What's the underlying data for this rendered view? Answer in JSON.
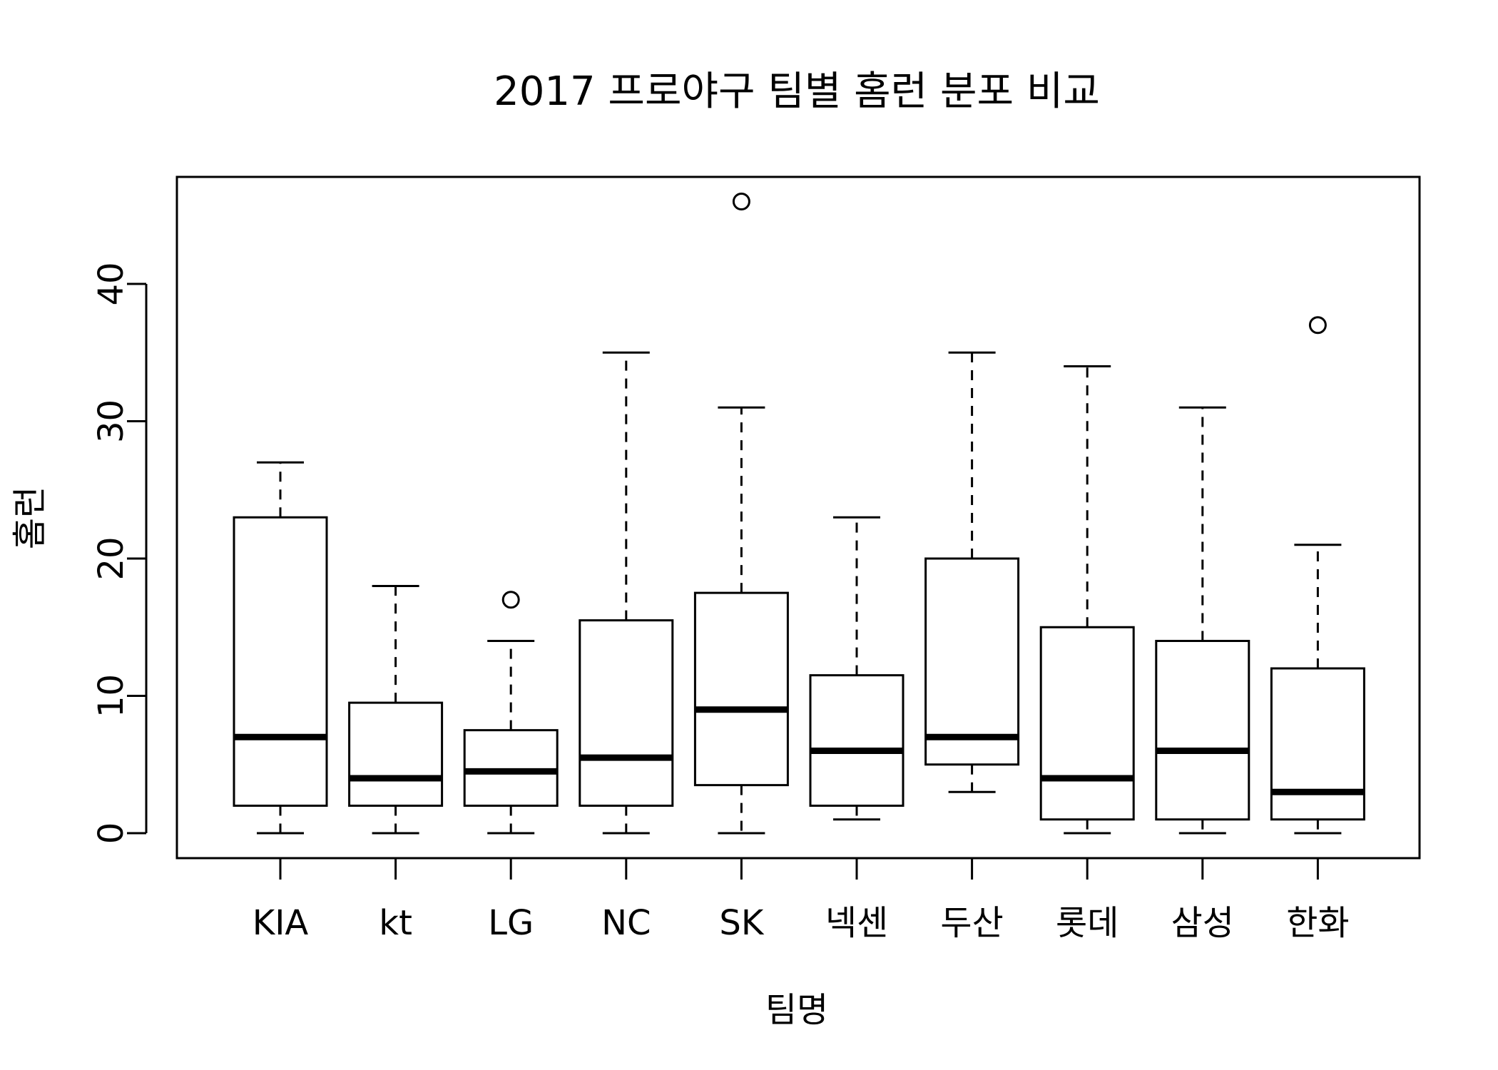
{
  "chart_data": {
    "type": "boxplot",
    "title": "2017 프로야구 팀별 홈런 분포 비교",
    "xlabel": "팀명",
    "ylabel": "홈런",
    "ylim": [
      -1.8,
      48
    ],
    "y_ticks": [
      0,
      10,
      20,
      30,
      40
    ],
    "y_tick_labels": [
      "0",
      "10",
      "20",
      "30",
      "40"
    ],
    "grid": false,
    "legend": "none",
    "categories": [
      "KIA",
      "kt",
      "LG",
      "NC",
      "SK",
      "넥센",
      "두산",
      "롯데",
      "삼성",
      "한화"
    ],
    "boxes": [
      {
        "name": "KIA",
        "min": 0,
        "q1": 2,
        "median": 7,
        "q3": 23,
        "max": 27,
        "outliers": []
      },
      {
        "name": "kt",
        "min": 0,
        "q1": 2,
        "median": 4,
        "q3": 9.5,
        "max": 18,
        "outliers": []
      },
      {
        "name": "LG",
        "min": 0,
        "q1": 2,
        "median": 4.5,
        "q3": 7.5,
        "max": 14,
        "outliers": [
          17
        ]
      },
      {
        "name": "NC",
        "min": 0,
        "q1": 2,
        "median": 5.5,
        "q3": 15.5,
        "max": 35,
        "outliers": []
      },
      {
        "name": "SK",
        "min": 0,
        "q1": 3.5,
        "median": 9,
        "q3": 17.5,
        "max": 31,
        "outliers": [
          46
        ]
      },
      {
        "name": "넥센",
        "min": 1,
        "q1": 2,
        "median": 6,
        "q3": 11.5,
        "max": 23,
        "outliers": []
      },
      {
        "name": "두산",
        "min": 3,
        "q1": 5,
        "median": 7,
        "q3": 20,
        "max": 35,
        "outliers": []
      },
      {
        "name": "롯데",
        "min": 0,
        "q1": 1,
        "median": 4,
        "q3": 15,
        "max": 34,
        "outliers": []
      },
      {
        "name": "삼성",
        "min": 0,
        "q1": 1,
        "median": 6,
        "q3": 14,
        "max": 31,
        "outliers": []
      },
      {
        "name": "한화",
        "min": 0,
        "q1": 1,
        "median": 3,
        "q3": 12,
        "max": 21,
        "outliers": [
          37
        ]
      }
    ]
  }
}
